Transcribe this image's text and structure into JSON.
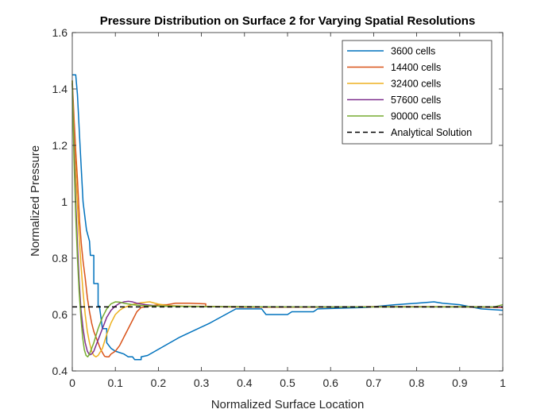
{
  "chart_data": {
    "type": "line",
    "title": "Pressure Distribution on Surface 2 for Varying Spatial Resolutions",
    "xlabel": "Normalized Surface Location",
    "ylabel": "Normalized Pressure",
    "xlim": [
      0,
      1
    ],
    "ylim": [
      0.4,
      1.6
    ],
    "xticks": [
      0,
      0.1,
      0.2,
      0.3,
      0.4,
      0.5,
      0.6,
      0.7,
      0.8,
      0.9,
      1
    ],
    "xtick_labels": [
      "0",
      "0.1",
      "0.2",
      "0.3",
      "0.4",
      "0.5",
      "0.6",
      "0.7",
      "0.8",
      "0.9",
      "1"
    ],
    "yticks": [
      0.4,
      0.6,
      0.8,
      1,
      1.2,
      1.4,
      1.6
    ],
    "ytick_labels": [
      "0.4",
      "0.6",
      "0.8",
      "1",
      "1.2",
      "1.4",
      "1.6"
    ],
    "grid": false,
    "legend_position": "top-right",
    "series": [
      {
        "name": "3600 cells",
        "color": "#0072BD",
        "style": "solid",
        "points": [
          [
            0,
            1.45
          ],
          [
            0.008,
            1.45
          ],
          [
            0.012,
            1.38
          ],
          [
            0.018,
            1.2
          ],
          [
            0.025,
            1.0
          ],
          [
            0.033,
            0.9
          ],
          [
            0.04,
            0.86
          ],
          [
            0.042,
            0.81
          ],
          [
            0.05,
            0.81
          ],
          [
            0.05,
            0.71
          ],
          [
            0.06,
            0.71
          ],
          [
            0.06,
            0.63
          ],
          [
            0.063,
            0.63
          ],
          [
            0.07,
            0.55
          ],
          [
            0.08,
            0.55
          ],
          [
            0.08,
            0.5
          ],
          [
            0.09,
            0.48
          ],
          [
            0.1,
            0.47
          ],
          [
            0.12,
            0.46
          ],
          [
            0.13,
            0.45
          ],
          [
            0.14,
            0.45
          ],
          [
            0.145,
            0.44
          ],
          [
            0.16,
            0.44
          ],
          [
            0.16,
            0.45
          ],
          [
            0.175,
            0.455
          ],
          [
            0.25,
            0.52
          ],
          [
            0.32,
            0.57
          ],
          [
            0.38,
            0.62
          ],
          [
            0.41,
            0.62
          ],
          [
            0.44,
            0.62
          ],
          [
            0.45,
            0.6
          ],
          [
            0.5,
            0.6
          ],
          [
            0.51,
            0.61
          ],
          [
            0.56,
            0.61
          ],
          [
            0.57,
            0.62
          ],
          [
            0.68,
            0.625
          ],
          [
            0.75,
            0.635
          ],
          [
            0.8,
            0.64
          ],
          [
            0.84,
            0.645
          ],
          [
            0.86,
            0.64
          ],
          [
            0.9,
            0.635
          ],
          [
            0.95,
            0.62
          ],
          [
            1,
            0.615
          ]
        ]
      },
      {
        "name": "14400 cells",
        "color": "#D95319",
        "style": "solid",
        "points": [
          [
            0,
            1.43
          ],
          [
            0.004,
            1.3
          ],
          [
            0.008,
            1.18
          ],
          [
            0.012,
            1.08
          ],
          [
            0.017,
            0.93
          ],
          [
            0.021,
            0.85
          ],
          [
            0.025,
            0.79
          ],
          [
            0.03,
            0.73
          ],
          [
            0.035,
            0.66
          ],
          [
            0.04,
            0.61
          ],
          [
            0.045,
            0.57
          ],
          [
            0.05,
            0.54
          ],
          [
            0.055,
            0.52
          ],
          [
            0.06,
            0.5
          ],
          [
            0.065,
            0.48
          ],
          [
            0.07,
            0.465
          ],
          [
            0.075,
            0.452
          ],
          [
            0.08,
            0.45
          ],
          [
            0.085,
            0.45
          ],
          [
            0.09,
            0.46
          ],
          [
            0.1,
            0.47
          ],
          [
            0.11,
            0.49
          ],
          [
            0.12,
            0.52
          ],
          [
            0.13,
            0.55
          ],
          [
            0.14,
            0.58
          ],
          [
            0.15,
            0.61
          ],
          [
            0.16,
            0.625
          ],
          [
            0.18,
            0.63
          ],
          [
            0.2,
            0.635
          ],
          [
            0.22,
            0.635
          ],
          [
            0.24,
            0.64
          ],
          [
            0.27,
            0.64
          ],
          [
            0.31,
            0.638
          ],
          [
            0.31,
            0.628
          ],
          [
            0.4,
            0.626
          ],
          [
            0.5,
            0.626
          ],
          [
            0.6,
            0.626
          ],
          [
            0.7,
            0.628
          ],
          [
            0.8,
            0.628
          ],
          [
            0.9,
            0.627
          ],
          [
            1,
            0.625
          ]
        ]
      },
      {
        "name": "32400 cells",
        "color": "#EDB120",
        "style": "solid",
        "points": [
          [
            0,
            1.42
          ],
          [
            0.005,
            1.2
          ],
          [
            0.01,
            1.05
          ],
          [
            0.015,
            0.9
          ],
          [
            0.02,
            0.78
          ],
          [
            0.025,
            0.68
          ],
          [
            0.03,
            0.6
          ],
          [
            0.035,
            0.54
          ],
          [
            0.04,
            0.5
          ],
          [
            0.045,
            0.47
          ],
          [
            0.05,
            0.455
          ],
          [
            0.055,
            0.45
          ],
          [
            0.06,
            0.455
          ],
          [
            0.07,
            0.48
          ],
          [
            0.08,
            0.53
          ],
          [
            0.09,
            0.57
          ],
          [
            0.1,
            0.6
          ],
          [
            0.11,
            0.615
          ],
          [
            0.12,
            0.625
          ],
          [
            0.13,
            0.63
          ],
          [
            0.14,
            0.636
          ],
          [
            0.16,
            0.642
          ],
          [
            0.18,
            0.645
          ],
          [
            0.2,
            0.637
          ],
          [
            0.22,
            0.632
          ],
          [
            0.26,
            0.63
          ],
          [
            0.35,
            0.628
          ],
          [
            0.5,
            0.627
          ],
          [
            0.7,
            0.627
          ],
          [
            0.9,
            0.628
          ],
          [
            1,
            0.627
          ]
        ]
      },
      {
        "name": "57600 cells",
        "color": "#7E2F8E",
        "style": "solid",
        "points": [
          [
            0,
            1.42
          ],
          [
            0.004,
            1.2
          ],
          [
            0.008,
            1.0
          ],
          [
            0.012,
            0.85
          ],
          [
            0.016,
            0.72
          ],
          [
            0.02,
            0.62
          ],
          [
            0.025,
            0.55
          ],
          [
            0.03,
            0.5
          ],
          [
            0.035,
            0.47
          ],
          [
            0.04,
            0.457
          ],
          [
            0.045,
            0.46
          ],
          [
            0.05,
            0.47
          ],
          [
            0.06,
            0.51
          ],
          [
            0.07,
            0.55
          ],
          [
            0.08,
            0.59
          ],
          [
            0.09,
            0.615
          ],
          [
            0.1,
            0.63
          ],
          [
            0.11,
            0.64
          ],
          [
            0.12,
            0.645
          ],
          [
            0.13,
            0.647
          ],
          [
            0.14,
            0.645
          ],
          [
            0.15,
            0.64
          ],
          [
            0.17,
            0.635
          ],
          [
            0.2,
            0.63
          ],
          [
            0.3,
            0.628
          ],
          [
            0.5,
            0.627
          ],
          [
            0.7,
            0.627
          ],
          [
            0.9,
            0.627
          ],
          [
            1,
            0.627
          ]
        ]
      },
      {
        "name": "90000 cells",
        "color": "#77AC30",
        "style": "solid",
        "points": [
          [
            0,
            1.43
          ],
          [
            0.004,
            1.15
          ],
          [
            0.008,
            0.95
          ],
          [
            0.012,
            0.8
          ],
          [
            0.016,
            0.68
          ],
          [
            0.02,
            0.59
          ],
          [
            0.024,
            0.52
          ],
          [
            0.028,
            0.475
          ],
          [
            0.032,
            0.455
          ],
          [
            0.036,
            0.45
          ],
          [
            0.04,
            0.46
          ],
          [
            0.05,
            0.5
          ],
          [
            0.06,
            0.55
          ],
          [
            0.07,
            0.59
          ],
          [
            0.08,
            0.62
          ],
          [
            0.09,
            0.638
          ],
          [
            0.1,
            0.645
          ],
          [
            0.11,
            0.644
          ],
          [
            0.12,
            0.64
          ],
          [
            0.14,
            0.635
          ],
          [
            0.16,
            0.632
          ],
          [
            0.2,
            0.63
          ],
          [
            0.3,
            0.628
          ],
          [
            0.5,
            0.627
          ],
          [
            0.7,
            0.627
          ],
          [
            0.9,
            0.627
          ],
          [
            0.98,
            0.627
          ],
          [
            1,
            0.635
          ]
        ]
      },
      {
        "name": "Analytical Solution",
        "color": "#000000",
        "style": "dashed",
        "points": [
          [
            0,
            0.627
          ],
          [
            1,
            0.627
          ]
        ]
      }
    ]
  }
}
